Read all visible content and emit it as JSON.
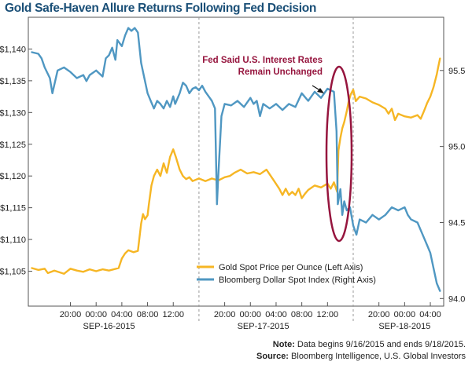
{
  "chart_data": {
    "type": "line",
    "title": "Gold Safe-Haven Allure Returns Following Fed Decision",
    "left_axis": {
      "ticks": [
        "$1,105",
        "$1,110",
        "$1,115",
        "$1,120",
        "$1,125",
        "$1,130",
        "$1,135",
        "$1,140"
      ],
      "values": [
        1105,
        1110,
        1115,
        1120,
        1125,
        1130,
        1135,
        1140
      ],
      "ylim": [
        1099.5,
        1145
      ]
    },
    "right_axis": {
      "ticks": [
        "94.0",
        "94.5",
        "95.0",
        "95.5"
      ],
      "values": [
        94.0,
        94.5,
        95.0,
        95.5
      ],
      "ylim": [
        93.95,
        95.85
      ]
    },
    "x_range": [
      0,
      62
    ],
    "time_ticks": [
      {
        "x": 6,
        "label": "20:00"
      },
      {
        "x": 10,
        "label": "00:00"
      },
      {
        "x": 14,
        "label": "04:00"
      },
      {
        "x": 18,
        "label": "08:00"
      },
      {
        "x": 22,
        "label": "12:00"
      },
      {
        "x": 30,
        "label": "20:00"
      },
      {
        "x": 34,
        "label": "00:00"
      },
      {
        "x": 38,
        "label": "04:00"
      },
      {
        "x": 42,
        "label": "08:00"
      },
      {
        "x": 46,
        "label": "12:00"
      },
      {
        "x": 54,
        "label": "20:00"
      },
      {
        "x": 58,
        "label": "00:00"
      },
      {
        "x": 62,
        "label": "04:00"
      }
    ],
    "day_labels": [
      {
        "x": 12,
        "label": "SEP-16-2015"
      },
      {
        "x": 36,
        "label": "SEP-17-2015"
      },
      {
        "x": 58,
        "label": "SEP-18-2015"
      }
    ],
    "dividers_x": [
      26,
      50
    ],
    "series": [
      {
        "name": "Gold Spot Price per Ounce (Left Axis)",
        "axis": "left",
        "color": "#f6b624",
        "points": [
          [
            0,
            1105.5
          ],
          [
            1,
            1105.2
          ],
          [
            2,
            1105.4
          ],
          [
            2.5,
            1104.7
          ],
          [
            3.5,
            1105.1
          ],
          [
            5,
            1104.6
          ],
          [
            6,
            1105.4
          ],
          [
            7,
            1105.1
          ],
          [
            8,
            1104.9
          ],
          [
            9,
            1105.3
          ],
          [
            10,
            1105.0
          ],
          [
            11,
            1105.3
          ],
          [
            12,
            1105.1
          ],
          [
            13.5,
            1105.5
          ],
          [
            14,
            1107.0
          ],
          [
            14.5,
            1107.8
          ],
          [
            15,
            1108.3
          ],
          [
            15.8,
            1108.0
          ],
          [
            16.5,
            1108.2
          ],
          [
            17,
            1112.5
          ],
          [
            17.3,
            1114.0
          ],
          [
            17.6,
            1113.2
          ],
          [
            18,
            1113.8
          ],
          [
            18.2,
            1115.5
          ],
          [
            18.6,
            1118.5
          ],
          [
            19,
            1120.0
          ],
          [
            19.5,
            1121.0
          ],
          [
            20,
            1120.0
          ],
          [
            20.5,
            1122.0
          ],
          [
            21,
            1120.5
          ],
          [
            21.5,
            1123.0
          ],
          [
            22,
            1124.2
          ],
          [
            22.4,
            1123.0
          ],
          [
            23,
            1121.0
          ],
          [
            23.5,
            1120.0
          ],
          [
            24,
            1119.5
          ],
          [
            24.5,
            1119.8
          ],
          [
            25,
            1119.2
          ],
          [
            26,
            1119.6
          ],
          [
            27,
            1119.2
          ],
          [
            28,
            1119.6
          ],
          [
            29,
            1119.3
          ],
          [
            30,
            1119.8
          ],
          [
            30.8,
            1120.0
          ],
          [
            31.5,
            1120.5
          ],
          [
            32.5,
            1121.0
          ],
          [
            33.5,
            1120.4
          ],
          [
            34.5,
            1120.6
          ],
          [
            35.5,
            1120.3
          ],
          [
            36.5,
            1121.0
          ],
          [
            37.5,
            1119.5
          ],
          [
            38.5,
            1118.0
          ],
          [
            39,
            1117.0
          ],
          [
            39.5,
            1118.0
          ],
          [
            40,
            1117.0
          ],
          [
            40.5,
            1117.5
          ],
          [
            41,
            1117.0
          ],
          [
            41.5,
            1118.0
          ],
          [
            42,
            1116.5
          ],
          [
            42.5,
            1117.2
          ],
          [
            43,
            1117.8
          ],
          [
            44,
            1118.5
          ],
          [
            45,
            1118.2
          ],
          [
            46,
            1118.8
          ],
          [
            46.5,
            1118.0
          ],
          [
            47,
            1119.0
          ],
          [
            47.5,
            1117.5
          ],
          [
            47.7,
            1124.0
          ],
          [
            48,
            1126.0
          ],
          [
            48.3,
            1127.5
          ],
          [
            48.6,
            1128.5
          ],
          [
            49,
            1130.2
          ],
          [
            49.3,
            1131.8
          ],
          [
            49.6,
            1132.8
          ],
          [
            50,
            1133.6
          ],
          [
            50.4,
            1131.8
          ],
          [
            51,
            1132.5
          ],
          [
            52,
            1132.2
          ],
          [
            53,
            1131.6
          ],
          [
            54,
            1131.2
          ],
          [
            55,
            1130.6
          ],
          [
            55.5,
            1129.8
          ],
          [
            56,
            1130.6
          ],
          [
            56.5,
            1128.8
          ],
          [
            57,
            1129.8
          ],
          [
            58,
            1129.4
          ],
          [
            59,
            1129.2
          ],
          [
            60,
            1129.6
          ],
          [
            60.5,
            1129.0
          ],
          [
            61,
            1130.2
          ],
          [
            61.5,
            1131.5
          ],
          [
            62,
            1132.5
          ],
          [
            62.5,
            1134.0
          ],
          [
            63,
            1136.0
          ],
          [
            63.2,
            1137.0
          ],
          [
            63.5,
            1138.5
          ]
        ]
      },
      {
        "name": "Bloomberg Dollar Spot Index (Right Axis)",
        "axis": "right",
        "color": "#4f97c2",
        "points": [
          [
            0,
            95.62
          ],
          [
            1,
            95.61
          ],
          [
            1.5,
            95.58
          ],
          [
            2,
            95.52
          ],
          [
            2.8,
            95.45
          ],
          [
            3.2,
            95.35
          ],
          [
            4,
            95.5
          ],
          [
            5,
            95.52
          ],
          [
            6,
            95.49
          ],
          [
            7,
            95.45
          ],
          [
            8,
            95.47
          ],
          [
            8.5,
            95.43
          ],
          [
            9,
            95.47
          ],
          [
            10,
            95.5
          ],
          [
            11,
            95.46
          ],
          [
            11.5,
            95.58
          ],
          [
            12,
            95.6
          ],
          [
            12.5,
            95.65
          ],
          [
            13,
            95.57
          ],
          [
            13.3,
            95.7
          ],
          [
            14,
            95.66
          ],
          [
            14.5,
            95.73
          ],
          [
            15,
            95.78
          ],
          [
            15.5,
            95.76
          ],
          [
            16,
            95.78
          ],
          [
            16.5,
            95.75
          ],
          [
            17,
            95.55
          ],
          [
            17.5,
            95.45
          ],
          [
            18,
            95.35
          ],
          [
            18.5,
            95.3
          ],
          [
            19,
            95.25
          ],
          [
            19.5,
            95.3
          ],
          [
            20,
            95.28
          ],
          [
            20.5,
            95.25
          ],
          [
            21,
            95.3
          ],
          [
            21.5,
            95.26
          ],
          [
            22,
            95.33
          ],
          [
            22.3,
            95.28
          ],
          [
            23,
            95.35
          ],
          [
            23.5,
            95.42
          ],
          [
            24,
            95.4
          ],
          [
            24.5,
            95.35
          ],
          [
            25,
            95.38
          ],
          [
            25.5,
            95.39
          ],
          [
            26,
            95.37
          ],
          [
            26.5,
            95.4
          ],
          [
            27,
            95.36
          ],
          [
            27.5,
            95.33
          ],
          [
            28,
            95.3
          ],
          [
            28.5,
            95.25
          ],
          [
            28.8,
            94.62
          ],
          [
            29,
            94.8
          ],
          [
            29.5,
            95.2
          ],
          [
            30,
            95.28
          ],
          [
            31,
            95.27
          ],
          [
            32,
            95.3
          ],
          [
            33,
            95.26
          ],
          [
            34,
            95.32
          ],
          [
            34.5,
            95.28
          ],
          [
            35,
            95.3
          ],
          [
            35.5,
            95.2
          ],
          [
            36,
            95.28
          ],
          [
            37,
            95.25
          ],
          [
            38,
            95.28
          ],
          [
            39,
            95.24
          ],
          [
            40,
            95.28
          ],
          [
            41,
            95.26
          ],
          [
            42,
            95.35
          ],
          [
            43,
            95.3
          ],
          [
            44,
            95.36
          ],
          [
            45,
            95.32
          ],
          [
            46,
            95.38
          ],
          [
            47,
            95.36
          ],
          [
            47.4,
            95.1
          ],
          [
            47.6,
            94.62
          ],
          [
            48,
            94.72
          ],
          [
            48.3,
            94.55
          ],
          [
            48.6,
            94.64
          ],
          [
            49,
            94.58
          ],
          [
            49.5,
            94.6
          ],
          [
            50,
            94.48
          ],
          [
            50.5,
            94.42
          ],
          [
            51,
            94.52
          ],
          [
            52,
            94.5
          ],
          [
            53,
            94.55
          ],
          [
            54,
            94.52
          ],
          [
            55,
            94.55
          ],
          [
            56,
            94.6
          ],
          [
            57,
            94.58
          ],
          [
            58,
            94.6
          ],
          [
            58.5,
            94.55
          ],
          [
            59,
            94.52
          ],
          [
            60,
            94.5
          ],
          [
            60.5,
            94.45
          ],
          [
            61,
            94.4
          ],
          [
            61.5,
            94.35
          ],
          [
            62,
            94.3
          ],
          [
            62.5,
            94.2
          ],
          [
            63,
            94.1
          ],
          [
            63.5,
            94.05
          ]
        ]
      }
    ],
    "legend": {
      "placement": "bottom-right"
    },
    "annotation": {
      "line1": "Fed Said U.S. Interest Rates",
      "line2": "Remain Unchanged",
      "color": "#96153e"
    },
    "grid": false
  },
  "footnote": {
    "note_label": "Note:",
    "note_text": "Data begins 9/16/2015 and ends 9/18/2015.",
    "source_label": "Source:",
    "source_text": "Bloomberg Intelligence, U.S. Global Investors"
  }
}
